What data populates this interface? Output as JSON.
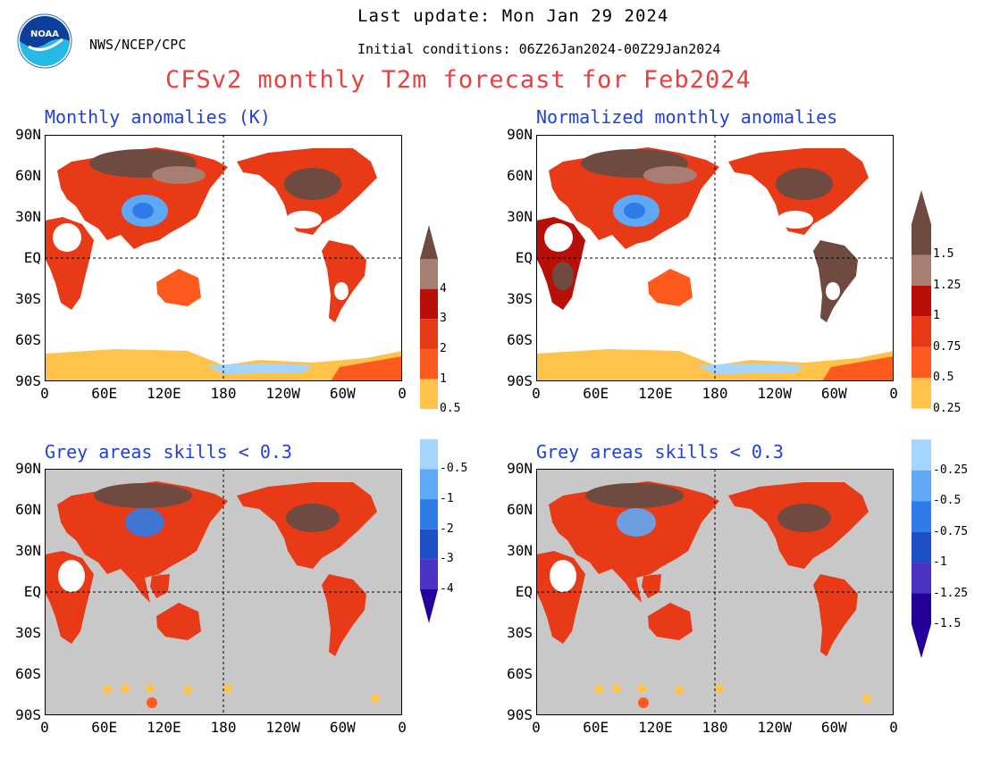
{
  "header": {
    "agency": "NWS/NCEP/CPC",
    "logo_text": "NOAA",
    "last_update": "Last update: Mon Jan 29 2024",
    "initial_conditions": "Initial conditions: 06Z26Jan2024-00Z29Jan2024",
    "title": "CFSv2 monthly T2m forecast for Feb2024"
  },
  "panels": [
    {
      "title": "Monthly anomalies (K)",
      "masked": false
    },
    {
      "title": "Normalized monthly anomalies",
      "masked": false
    },
    {
      "title": "Grey areas skills < 0.3",
      "masked": true
    },
    {
      "title": "Grey areas skills < 0.3",
      "masked": true
    }
  ],
  "lat_labels": [
    "90N",
    "60N",
    "30N",
    "EQ",
    "30S",
    "60S",
    "90S"
  ],
  "lon_labels": [
    "0",
    "60E",
    "120E",
    "180",
    "120W",
    "60W",
    "0"
  ],
  "colorbars": [
    {
      "labels": [
        "4",
        "3",
        "2",
        "1",
        "0.5",
        "-0.5",
        "-1",
        "-2",
        "-3",
        "-4"
      ]
    },
    {
      "labels": [
        "1.5",
        "1.25",
        "1",
        "0.75",
        "0.5",
        "0.25",
        "-0.25",
        "-0.5",
        "-0.75",
        "-1",
        "-1.25",
        "-1.5"
      ]
    }
  ],
  "colors": {
    "title": "#e8403f",
    "panel_title": "#1f3fe0",
    "mask_grey": "#c8c8c8",
    "warm": [
      "#ffc34b",
      "#ff5a1e",
      "#e83a16",
      "#b81008",
      "#a87e72",
      "#6e4a40"
    ],
    "cold": [
      "#a5d4ff",
      "#5fa8f5",
      "#2f7ce8",
      "#1d50c6",
      "#4a32c2",
      "#26009b"
    ]
  }
}
